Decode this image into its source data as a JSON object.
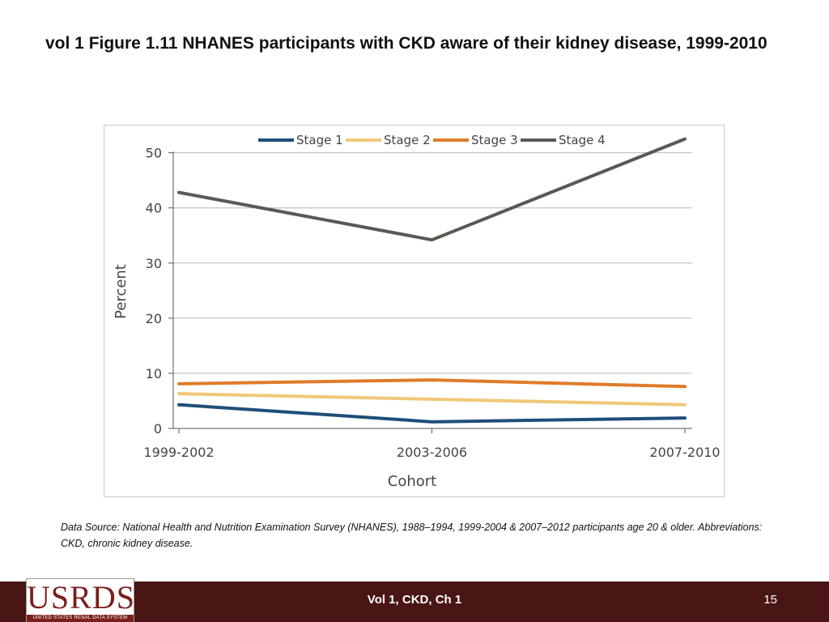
{
  "slide": {
    "title": "vol 1 Figure 1.11  NHANES participants with CKD aware of their kidney disease, 1999-2010",
    "source_note": "Data Source: National Health and Nutrition Examination Survey (NHANES), 1988–1994, 1999-2004 & 2007–2012 participants age 20 & older. Abbreviations: CKD, chronic kidney disease."
  },
  "footer": {
    "logo_text": "USRDS",
    "logo_subtext": "UNITED STATES RENAL DATA SYSTEM",
    "center_text": "Vol 1, CKD, Ch 1",
    "page_number": "15",
    "bar_color": "#4a1515"
  },
  "chart_data": {
    "type": "line",
    "title": "",
    "xlabel": "Cohort",
    "ylabel": "Percent",
    "categories": [
      "1999-2002",
      "2003-2006",
      "2007-2010"
    ],
    "ylim": [
      0,
      52
    ],
    "yticks": [
      0,
      10,
      20,
      30,
      40,
      50
    ],
    "grid": true,
    "legend_position": "top",
    "series": [
      {
        "name": "Stage 1",
        "color": "#1f4e79",
        "values": [
          4.3,
          1.2,
          1.9
        ]
      },
      {
        "name": "Stage 2",
        "color": "#f2c77a",
        "values": [
          6.3,
          5.3,
          4.3
        ]
      },
      {
        "name": "Stage 3",
        "color": "#e07b2a",
        "values": [
          8.1,
          8.8,
          7.6
        ]
      },
      {
        "name": "Stage 4",
        "color": "#5e5754",
        "values": [
          42.8,
          34.2,
          52.5
        ]
      }
    ]
  }
}
